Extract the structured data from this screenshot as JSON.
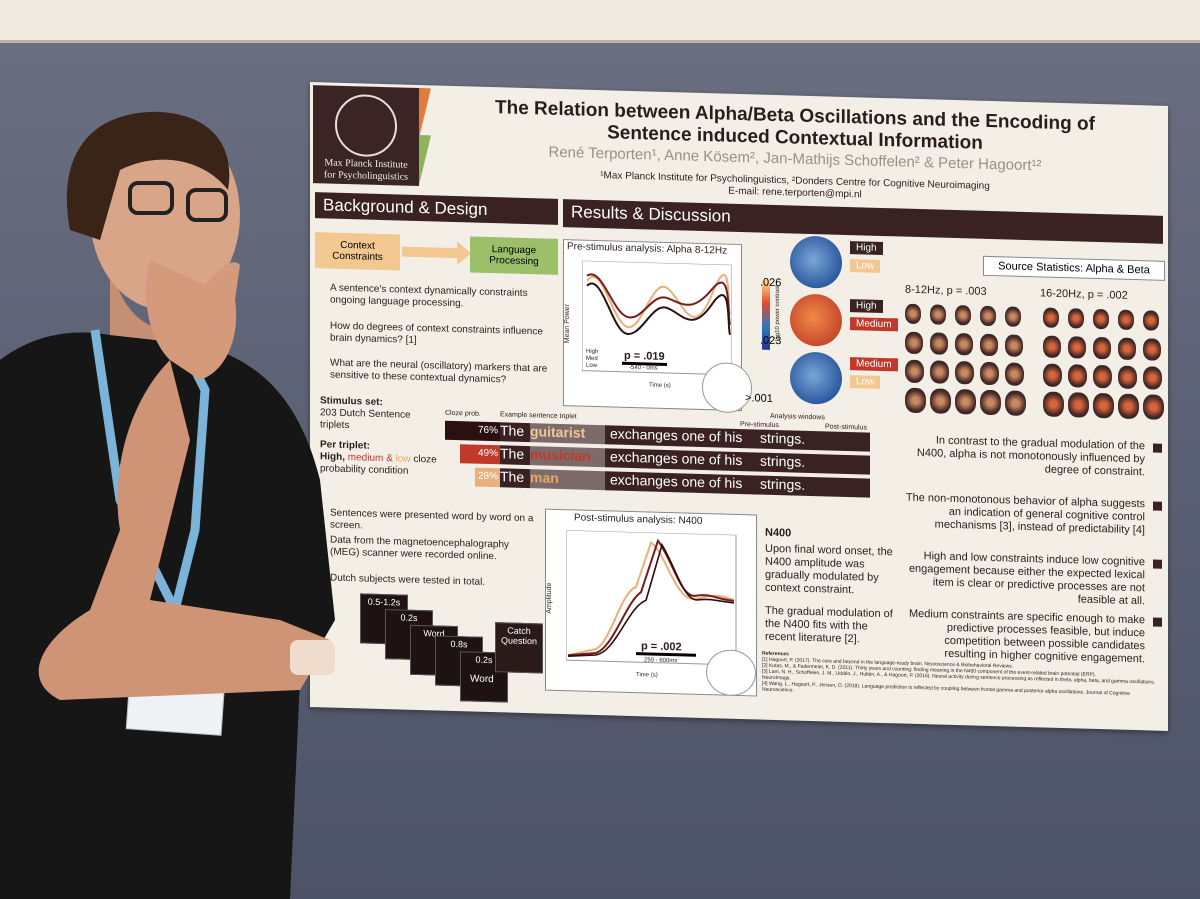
{
  "poster": {
    "logo": [
      "Max Planck Institute",
      "for Psycholinguistics"
    ],
    "title": [
      "The Relation between Alpha/Beta Oscillations and the Encoding of",
      "Sentence induced Contextual Information"
    ],
    "authors": "René Terporten¹, Anne Kösem², Jan-Mathijs Schoffelen² & Peter Hagoort¹²",
    "affiliations": "¹Max Planck Institute for Psycholinguistics, ²Donders Centre for Cognitive Neuroimaging",
    "email": "E-mail: rene.terporten@mpi.nl",
    "background": {
      "heading": "Background & Design",
      "flow": [
        "Context Constraints",
        "Language Processing"
      ],
      "bullets": [
        "A sentence's context dynamically constraints ongoing language processing.",
        "How do degrees of context constraints influence brain dynamics? [1]",
        "What are the neural (oscillatory) markers that are sensitive to these contextual dynamics?"
      ],
      "stimulus_label": "Stimulus set:",
      "stimulus_text": "203 Dutch Sentence triplets",
      "triplet_label": "Per triplet:",
      "triplet_high": "High,",
      "triplet_medium": "medium &",
      "triplet_low": "low",
      "triplet_rest": "cloze probability condition",
      "methods": [
        "Sentences were presented word by word on a screen.",
        "Data from the magnetoencephalography (MEG) scanner were recorded online.",
        "Dutch subjects were tested in total."
      ],
      "trial": [
        "0.5-1.2s",
        "0.2s",
        "Word",
        "0.8s",
        "0.2s",
        "Word",
        "Catch Question"
      ]
    },
    "sentences": {
      "cloze_header": "Cloze prob.",
      "example_header": "Example sentence triplet",
      "analysis_windows": "Analysis windows",
      "pre": "Pre-stimulus",
      "post": "Post-stimulus",
      "rows": [
        {
          "prob": "76%",
          "words": [
            "The",
            "guitarist",
            "exchanges one of his",
            "strings."
          ]
        },
        {
          "prob": "49%",
          "words": [
            "The",
            "musician",
            "exchanges one of his",
            "strings."
          ]
        },
        {
          "prob": "28%",
          "words": [
            "The",
            "man",
            "exchanges one of his",
            "strings."
          ]
        }
      ]
    },
    "results": {
      "heading": "Results & Discussion",
      "pre_title": "Pre-stimulus analysis: Alpha 8-12Hz",
      "pre_p": "p = .019",
      "pre_window": "-540 - 0ms",
      "pre_ylabel": "Mean Power",
      "time_label": "Time (s)",
      "legend": [
        "High",
        "Med",
        "Low"
      ],
      "colorbar": "log10 power contrast",
      "topos": [
        {
          "a": "High",
          "b": "Low",
          "p": ".026"
        },
        {
          "a": "High",
          "b": "Medium",
          "p": ".023"
        },
        {
          "a": "Medium",
          "b": "Low",
          "p": ">.001"
        }
      ],
      "source_title": "Source Statistics: Alpha & Beta",
      "source_alpha": "8-12Hz, p = .003",
      "source_beta": "16-20Hz, p = .002",
      "post_title": "Post-stimulus analysis: N400",
      "post_p": "p = .002",
      "post_window": "250 - 600ms",
      "post_ylabel": "Amplitude",
      "n400_heading": "N400",
      "n400_text": [
        "Upon final word onset, the N400 amplitude was gradually modulated by context constraint.",
        "The gradual modulation of the N400 fits with the recent literature [2]."
      ],
      "conclusions": [
        "In contrast to the gradual modulation of the N400, alpha is not monotonously influenced by degree of constraint.",
        "The non-monotonous behavior of alpha suggests an indication of general cognitive control mechanisms [3], instead of predictability [4]",
        "High and low constraints induce low cognitive engagement because either the expected lexical item is clear or predictive processes are not feasible at all.",
        "Medium constraints are specific enough to make predictive processes feasible, but induce competition between possible candidates resulting in higher cognitive engagement."
      ],
      "references_heading": "References",
      "references": [
        "[1] Hagoort, P. (2017). The core and beyond in the language-ready brain. Neuroscience & Biobehavioral Reviews.",
        "[2] Kutas, M., & Federmeier, K. D. (2011). Thirty years and counting: finding meaning in the N400 component of the event-related brain potential (ERP).",
        "[3] Lam, N. H., Schoffelen, J. M., Uddén, J., Hultén, A., & Hagoort, P. (2016). Neural activity during sentence processing as reflected in theta, alpha, beta, and gamma oscillations. NeuroImage.",
        "[4] Wang, L., Hagoort, P., Jensen, O. (2018). Language prediction is reflected by coupling between frontal gamma and posterior alpha oscillations. Journal of Cognitive Neuroscience."
      ]
    }
  }
}
